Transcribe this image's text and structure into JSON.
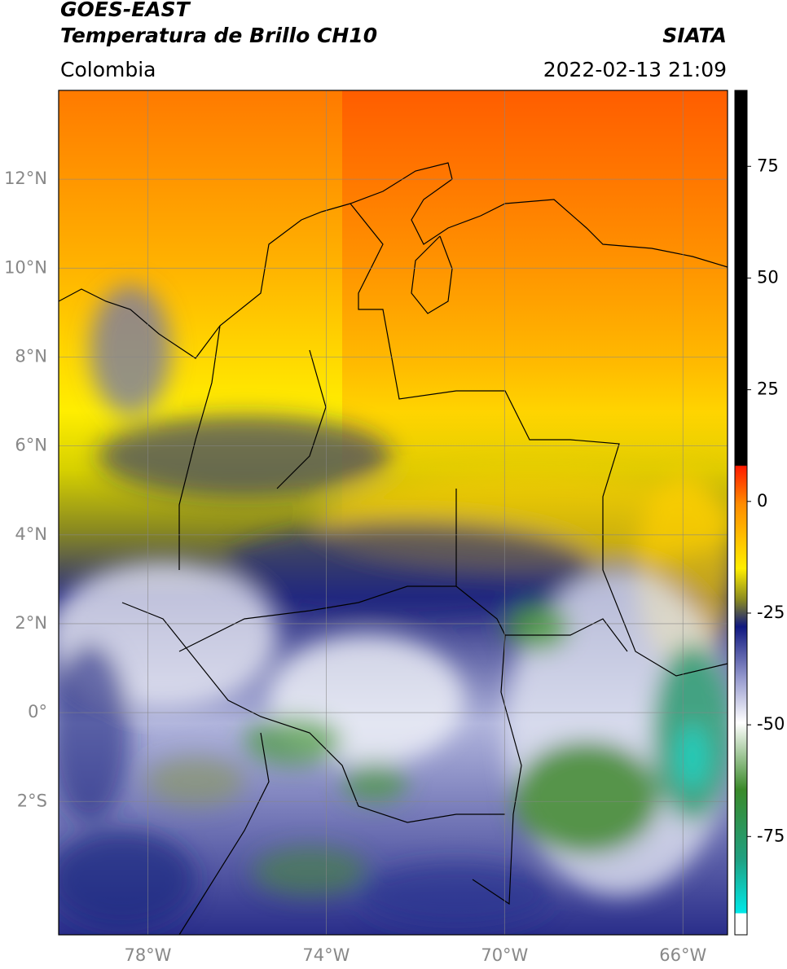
{
  "header": {
    "title": "GOES-EAST",
    "subtitle": "Temperatura de Brillo CH10",
    "source": "SIATA",
    "region": "Colombia",
    "datetime": "2022-02-13 21:09"
  },
  "map": {
    "xlim": [
      -80,
      -65
    ],
    "ylim": [
      -5,
      14
    ],
    "xticks": [
      {
        "value": -78,
        "label": "78°W"
      },
      {
        "value": -74,
        "label": "74°W"
      },
      {
        "value": -70,
        "label": "70°W"
      },
      {
        "value": -66,
        "label": "66°W"
      }
    ],
    "yticks": [
      {
        "value": 12,
        "label": "12°N"
      },
      {
        "value": 10,
        "label": "10°N"
      },
      {
        "value": 8,
        "label": "8°N"
      },
      {
        "value": 6,
        "label": "6°N"
      },
      {
        "value": 4,
        "label": "4°N"
      },
      {
        "value": 2,
        "label": "2°N"
      },
      {
        "value": 0,
        "label": "0°"
      },
      {
        "value": -2,
        "label": "2°S"
      }
    ],
    "grid": true,
    "colorbar": {
      "lim": [
        -97,
        92
      ],
      "ticks": [
        75,
        50,
        25,
        0,
        -25,
        -50,
        -75
      ]
    }
  }
}
